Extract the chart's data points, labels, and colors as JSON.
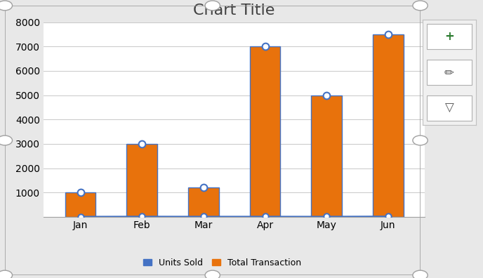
{
  "categories": [
    "Jan",
    "Feb",
    "Mar",
    "Apr",
    "May",
    "Jun"
  ],
  "units_sold": [
    10,
    15,
    12,
    13,
    11,
    20
  ],
  "total_transaction": [
    1000,
    3000,
    1200,
    7000,
    5000,
    7500
  ],
  "bar_color": "#E8720C",
  "line_color": "#4472C4",
  "marker_face": "#FFFFFF",
  "bar_edge_color": "#4472C4",
  "title": "Chart Title",
  "legend_units": "Units Sold",
  "legend_total": "Total Transaction",
  "ylim": [
    0,
    8000
  ],
  "yticks": [
    0,
    1000,
    2000,
    3000,
    4000,
    5000,
    6000,
    7000,
    8000
  ],
  "title_fontsize": 16,
  "tick_fontsize": 10,
  "legend_fontsize": 9,
  "outer_bg": "#E8E8E8",
  "chart_bg": "#FFFFFF",
  "grid_color": "#C8C8C8",
  "handle_color": "#A0A0A0",
  "border_color": "#A0A0A0",
  "sidebar_bg": "#F0F0F0",
  "bar_width": 0.5
}
